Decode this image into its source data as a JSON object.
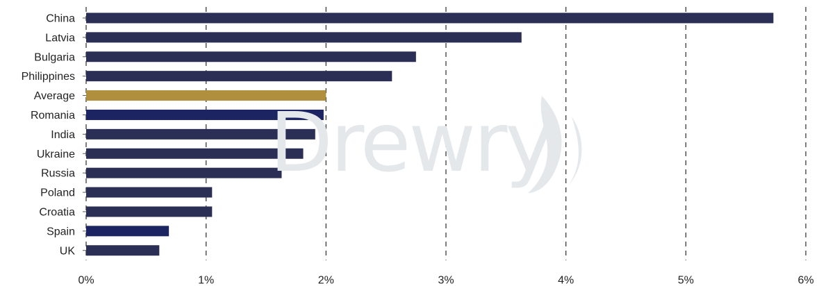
{
  "chart_data": {
    "type": "bar",
    "orientation": "horizontal",
    "categories": [
      "China",
      "Latvia",
      "Bulgaria",
      "Philippines",
      "Average",
      "Romania",
      "India",
      "Ukraine",
      "Russia",
      "Poland",
      "Croatia",
      "Spain",
      "UK"
    ],
    "values": [
      5.73,
      3.63,
      2.75,
      2.55,
      2.0,
      1.98,
      1.91,
      1.81,
      1.63,
      1.05,
      1.05,
      0.69,
      0.61
    ],
    "bar_colors": [
      "#2b2f55",
      "#2b2f55",
      "#2b2f55",
      "#2b2f55",
      "#b08f3e",
      "#1c2462",
      "#2b2f55",
      "#2b2f55",
      "#2b2f55",
      "#2b2f55",
      "#2b2f55",
      "#1c2462",
      "#2b2f55"
    ],
    "xlim": [
      0,
      6
    ],
    "x_ticks": [
      0,
      1,
      2,
      3,
      4,
      5,
      6
    ],
    "x_tick_labels": [
      "0%",
      "1%",
      "2%",
      "3%",
      "4%",
      "5%",
      "6%"
    ],
    "grid": "vertical dashed",
    "title": "",
    "xlabel": "",
    "ylabel": ""
  },
  "watermark": "Drewry"
}
